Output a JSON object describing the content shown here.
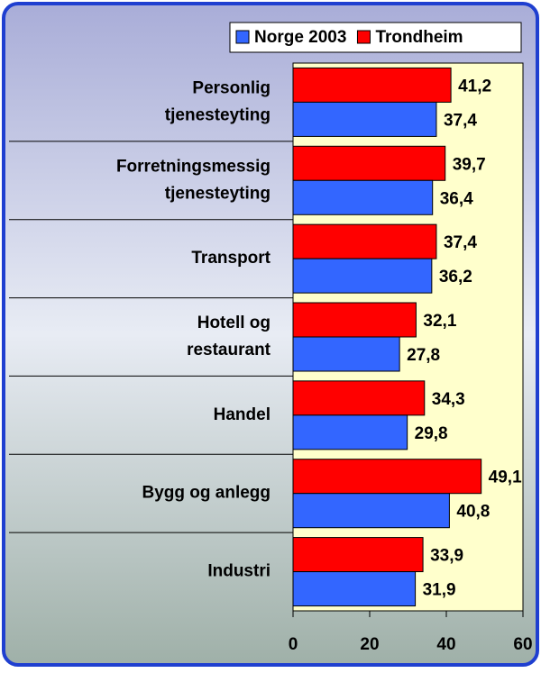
{
  "chart_data": {
    "type": "hbar",
    "categories": [
      "Personlig\ntjenesteyting",
      "Forretningsmessig\ntjenesteyting",
      "Transport",
      "Hotell og\nrestaurant",
      "Handel",
      "Bygg og anlegg",
      "Industri"
    ],
    "series": [
      {
        "name": "Norge 2003",
        "color": "#3366ff",
        "values": [
          37.4,
          36.4,
          36.2,
          27.8,
          29.8,
          40.8,
          31.9
        ],
        "value_labels": [
          "37,4",
          "36,4",
          "36,2",
          "27,8",
          "29,8",
          "40,8",
          "31,9"
        ]
      },
      {
        "name": "Trondheim",
        "color": "#ff0000",
        "values": [
          41.2,
          39.7,
          37.4,
          32.1,
          34.3,
          49.1,
          33.9
        ],
        "value_labels": [
          "41,2",
          "39,7",
          "37,4",
          "32,1",
          "34,3",
          "49,1",
          "33,9"
        ]
      }
    ],
    "xlim": [
      0,
      60
    ],
    "xticks": [
      0,
      20,
      40,
      60
    ],
    "legend": "top-right"
  }
}
